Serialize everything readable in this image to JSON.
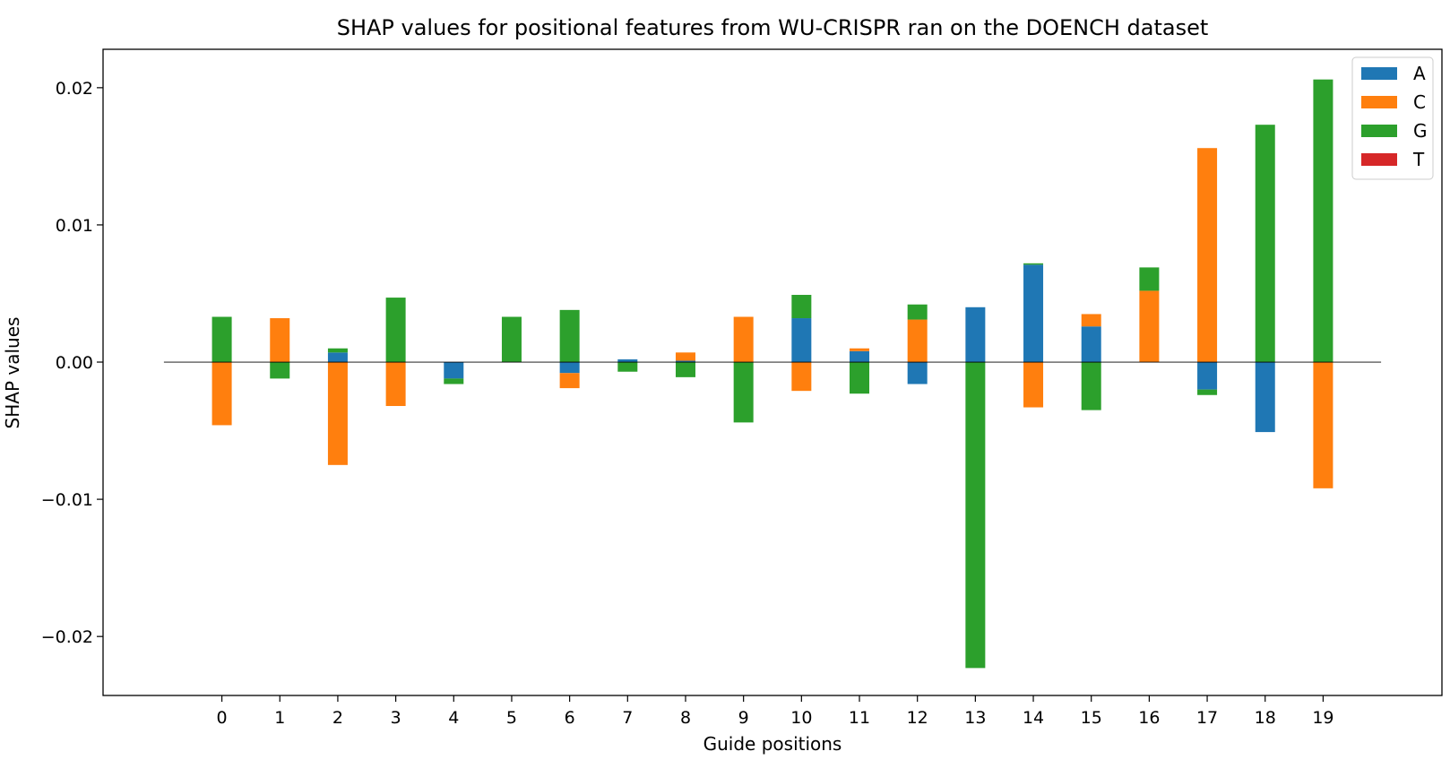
{
  "chart_data": {
    "type": "bar",
    "title": "SHAP values for positional features from WU-CRISPR ran on the DOENCH dataset",
    "xlabel": "Guide positions",
    "ylabel": "SHAP values",
    "categories": [
      "0",
      "1",
      "2",
      "3",
      "4",
      "5",
      "6",
      "7",
      "8",
      "9",
      "10",
      "11",
      "12",
      "13",
      "14",
      "15",
      "16",
      "17",
      "18",
      "19"
    ],
    "ylim": [
      -0.0243,
      0.0228
    ],
    "xlim": [
      -2.05,
      21.05
    ],
    "yticks": [
      0.02,
      0.01,
      0.0,
      -0.01,
      -0.02
    ],
    "ytick_labels": [
      "0.02",
      "0.01",
      "0.00",
      "−0.01",
      "−0.02"
    ],
    "stacked": true,
    "grid": false,
    "zero_line": true,
    "legend_position": "top-right",
    "series": [
      {
        "name": "A",
        "color": "#1f77b4",
        "values": [
          0,
          0,
          0.0007,
          0,
          -0.0012,
          0,
          -0.0008,
          0.0002,
          0.0001,
          0,
          0.0032,
          0.0008,
          -0.0016,
          0.004,
          0.0071,
          0.0026,
          0,
          -0.002,
          -0.0051,
          0
        ]
      },
      {
        "name": "C",
        "color": "#ff7f0e",
        "values": [
          -0.0046,
          0.0032,
          -0.0075,
          -0.0032,
          0,
          0,
          -0.0011,
          0,
          0.0006,
          0.0033,
          -0.0021,
          0.0002,
          0.0031,
          0,
          -0.0033,
          0.0009,
          0.0052,
          0.0156,
          0,
          -0.0092
        ]
      },
      {
        "name": "G",
        "color": "#2ca02c",
        "values": [
          0.0033,
          -0.0012,
          0.0003,
          0.0047,
          -0.0004,
          0.0033,
          0.0038,
          -0.0007,
          -0.0011,
          -0.0044,
          0.0017,
          -0.0023,
          0.0011,
          -0.0223,
          0.0001,
          -0.0035,
          0.0017,
          -0.0004,
          0.0173,
          0.0206
        ]
      },
      {
        "name": "T",
        "color": "#d62728",
        "values": [
          0,
          0,
          0,
          0,
          0,
          0,
          0,
          0,
          0,
          0,
          0,
          0,
          0,
          0,
          0,
          0,
          0,
          0,
          0,
          0
        ]
      }
    ]
  }
}
